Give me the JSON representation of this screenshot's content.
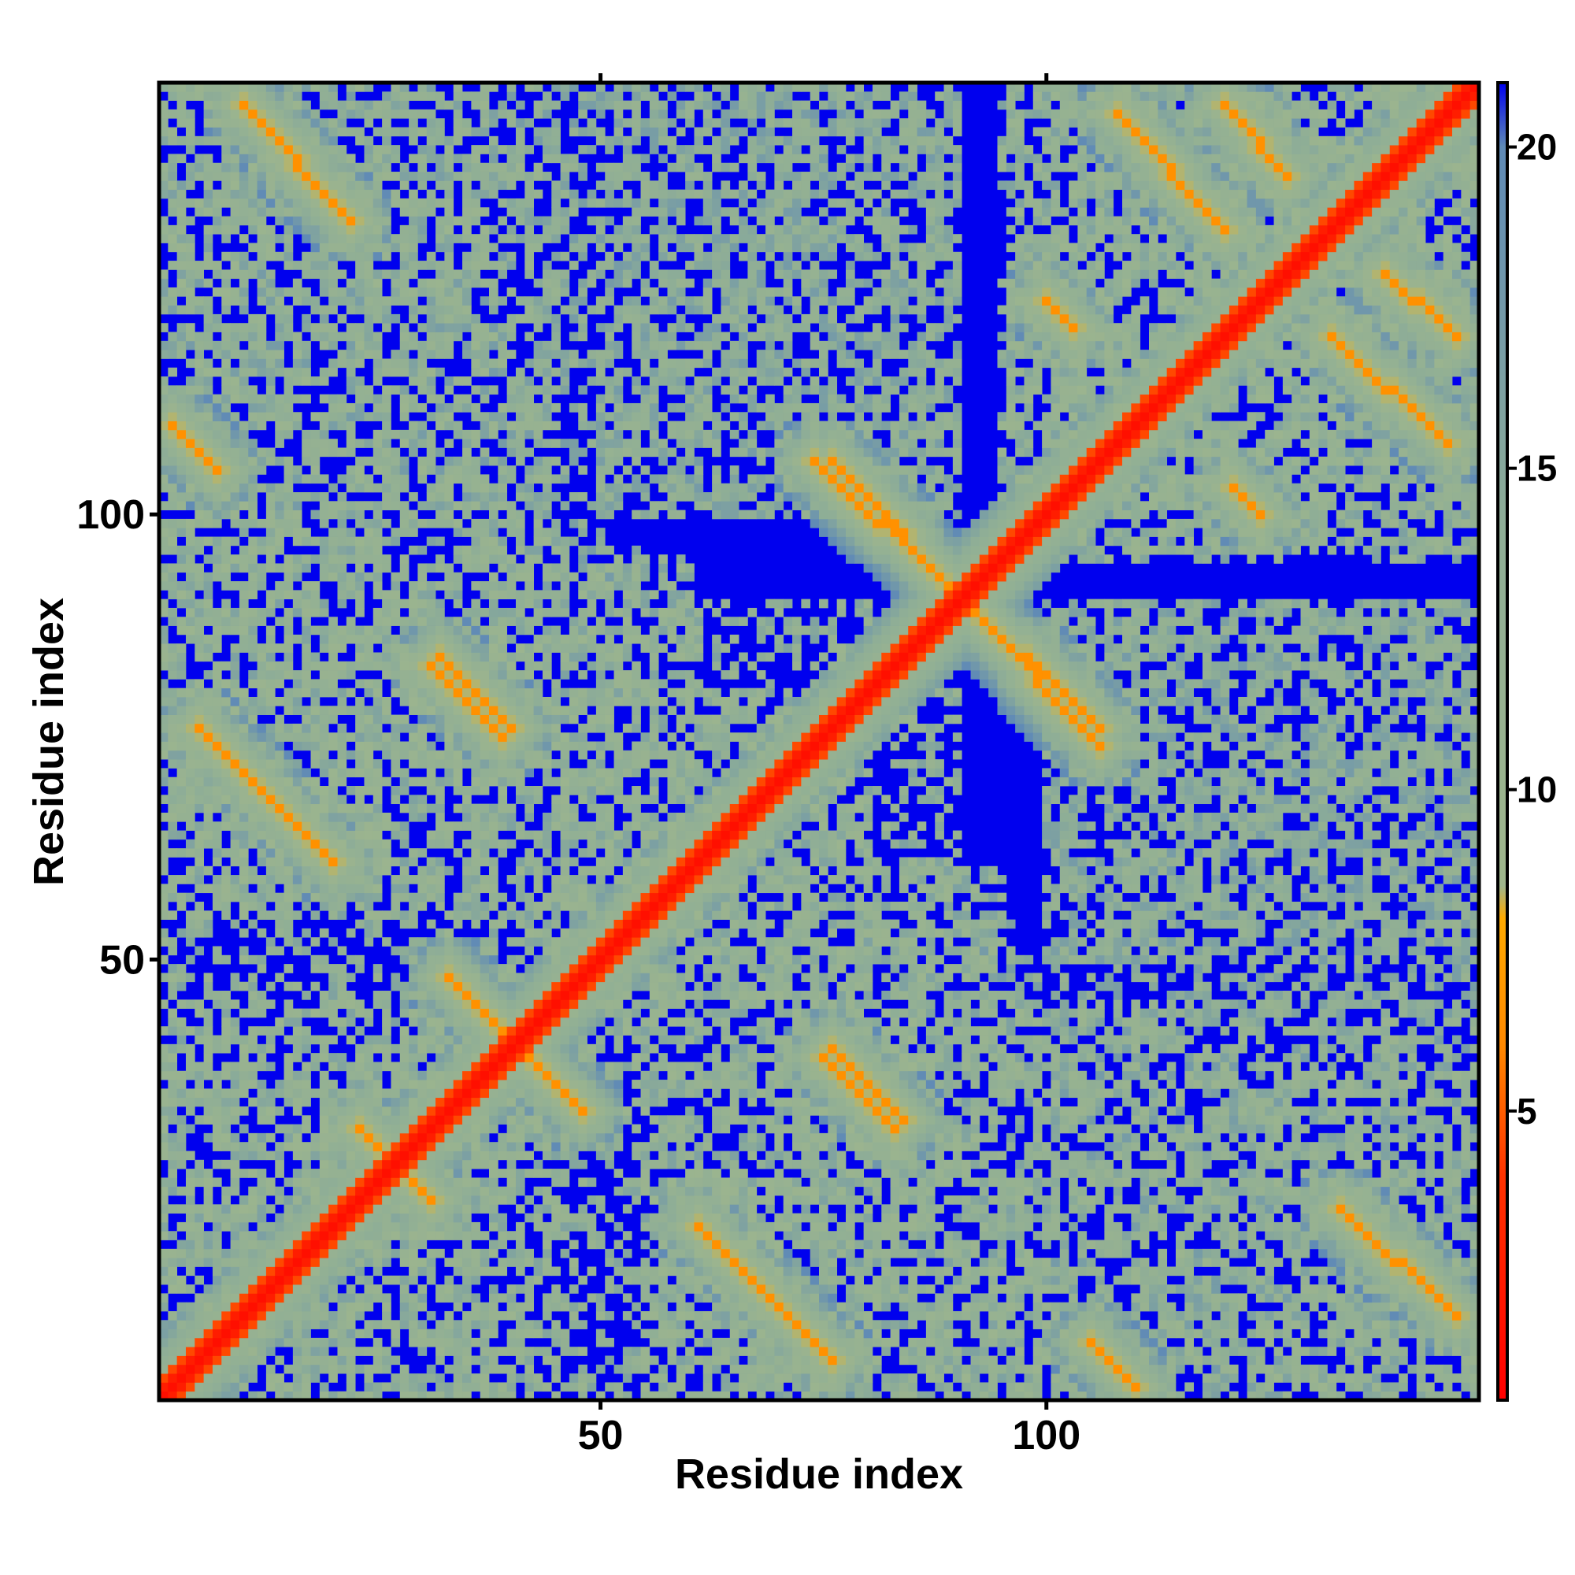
{
  "chart_data": {
    "type": "heatmap",
    "title": "",
    "xlabel": "Residue index",
    "ylabel": "Residue index",
    "n_residues": 148,
    "xlim": [
      1,
      148
    ],
    "ylim": [
      1,
      148
    ],
    "x_ticks": [
      50,
      100
    ],
    "x_tick_labels": [
      "50",
      "100"
    ],
    "y_ticks": [
      50,
      100
    ],
    "y_tick_labels": [
      "50",
      "100"
    ],
    "colorbar": {
      "range": [
        0.5,
        21
      ],
      "ticks": [
        5,
        10,
        15,
        20
      ],
      "tick_labels": [
        "5",
        "10",
        "15",
        "20"
      ],
      "stops": [
        {
          "value": 0.5,
          "color": "#ff0000"
        },
        {
          "value": 4,
          "color": "#ff3300"
        },
        {
          "value": 6,
          "color": "#ff8800"
        },
        {
          "value": 8,
          "color": "#ffaa00"
        },
        {
          "value": 8.5,
          "color": "#9fb68c"
        },
        {
          "value": 14,
          "color": "#8fae96"
        },
        {
          "value": 20,
          "color": "#5f8ab6"
        },
        {
          "value": 21,
          "color": "#0000ee"
        }
      ]
    },
    "cutoff_color": "#0000ee",
    "diagonal": {
      "value": 1.5
    },
    "contact_bands": [
      {
        "x_start": 10,
        "y_start": 146,
        "x_end": 22,
        "y_end": 133,
        "value": 6.5
      },
      {
        "x_start": 76,
        "y_start": 106,
        "x_end": 106,
        "y_end": 74,
        "value": 6.5
      },
      {
        "x_start": 120,
        "y_start": 146,
        "x_end": 127,
        "y_end": 138,
        "value": 6.5
      },
      {
        "x_start": 132,
        "y_start": 120,
        "x_end": 145,
        "y_end": 108,
        "value": 6.5
      },
      {
        "x_start": 32,
        "y_start": 84,
        "x_end": 40,
        "y_end": 76,
        "value": 6.5
      },
      {
        "x_start": 5,
        "y_start": 76,
        "x_end": 20,
        "y_end": 61,
        "value": 6.5
      },
      {
        "x_start": 34,
        "y_start": 47,
        "x_end": 48,
        "y_end": 33,
        "value": 6.5
      },
      {
        "x_start": 75,
        "y_start": 39,
        "x_end": 83,
        "y_end": 31,
        "value": 6.5
      },
      {
        "x_start": 62,
        "y_start": 19,
        "x_end": 75,
        "y_end": 6,
        "value": 6.5
      },
      {
        "x_start": 134,
        "y_start": 21,
        "x_end": 146,
        "y_end": 10,
        "value": 6.5
      },
      {
        "x_start": 23,
        "y_start": 31,
        "x_end": 30,
        "y_end": 24,
        "value": 6.5
      },
      {
        "x_start": 105,
        "y_start": 7,
        "x_end": 108,
        "y_end": 4,
        "value": 6.5
      },
      {
        "x_start": 2,
        "y_start": 110,
        "x_end": 5,
        "y_end": 107,
        "value": 6.5
      },
      {
        "x_start": 121,
        "y_start": 103,
        "x_end": 124,
        "y_end": 100,
        "value": 6.5
      }
    ],
    "haze_regions": [
      {
        "x": [
          1,
          45
        ],
        "y": [
          95,
          148
        ],
        "value": 13
      },
      {
        "x": [
          50,
          90
        ],
        "y": [
          100,
          148
        ],
        "value": 14
      },
      {
        "x": [
          95,
          148
        ],
        "y": [
          96,
          148
        ],
        "value": 13
      },
      {
        "x": [
          1,
          60
        ],
        "y": [
          55,
          95
        ],
        "value": 13
      },
      {
        "x": [
          40,
          90
        ],
        "y": [
          30,
          80
        ],
        "value": 13
      },
      {
        "x": [
          100,
          148
        ],
        "y": [
          55,
          90
        ],
        "value": 14
      },
      {
        "x": [
          90,
          148
        ],
        "y": [
          1,
          55
        ],
        "value": 14
      },
      {
        "x": [
          1,
          100
        ],
        "y": [
          1,
          45
        ],
        "value": 13
      }
    ]
  }
}
